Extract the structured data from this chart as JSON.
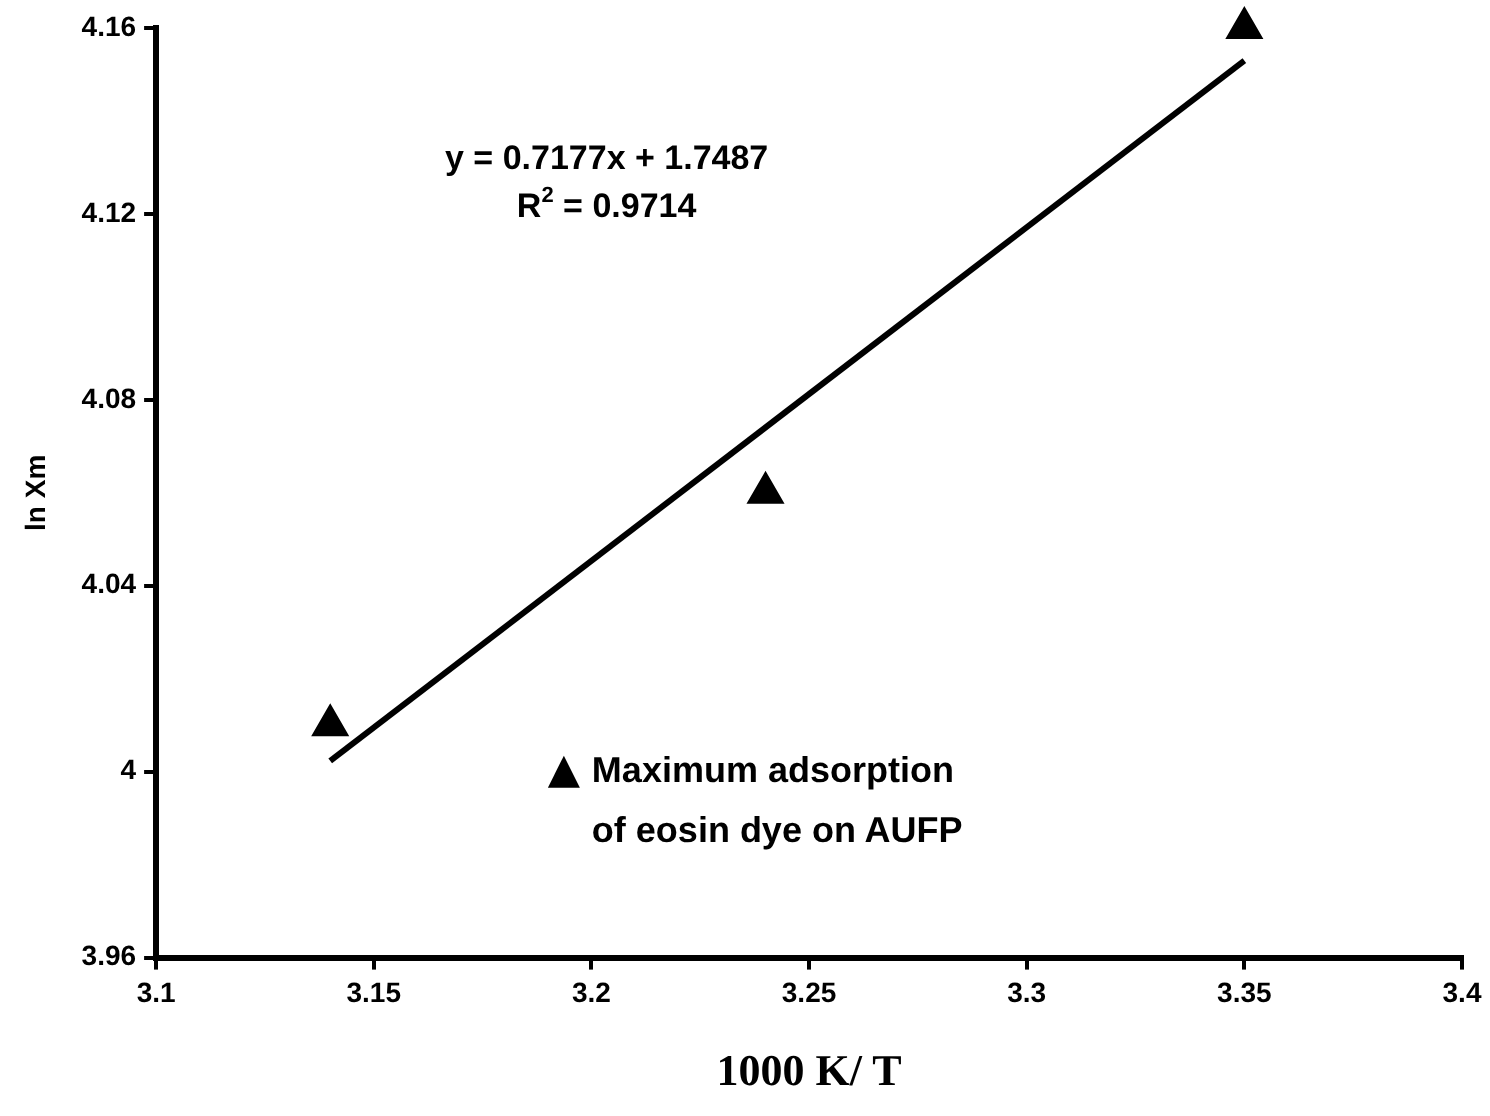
{
  "chart_data": {
    "type": "scatter",
    "xlabel": "1000 K/ T",
    "ylabel": "ln Xm",
    "x": [
      3.14,
      3.24,
      3.35
    ],
    "series": [
      {
        "name": "Maximum adsorption of eosin dye on AUFP",
        "color": "#000000",
        "values": [
          4.01,
          4.06,
          4.16
        ],
        "marker": "triangle"
      },
      {
        "type": "line",
        "color": "#000000",
        "x": [
          3.14,
          3.35
        ],
        "values": [
          4.0023,
          4.153
        ],
        "marker": "none"
      }
    ],
    "xlim": [
      3.1,
      3.4
    ],
    "xticks": [
      3.1,
      3.15,
      3.2,
      3.25,
      3.3,
      3.35,
      3.4
    ],
    "ylim": [
      3.96,
      4.16
    ],
    "yticks": [
      3.96,
      4,
      4.04,
      4.08,
      4.12,
      4.16
    ],
    "annotations": [
      "y = 0.7177x + 1.7487",
      "R$^{2}$ = 0.9714"
    ],
    "grid": false,
    "legend": "bottom"
  }
}
